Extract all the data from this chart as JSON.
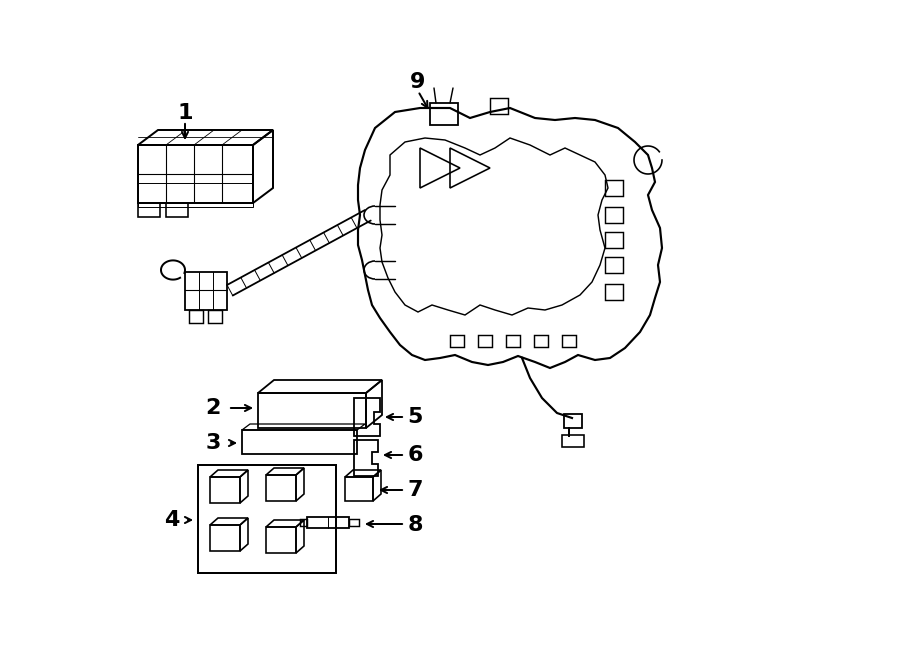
{
  "background_color": "#ffffff",
  "line_color": "#000000",
  "lw": 1.3,
  "label_fontsize": 16,
  "figsize": [
    9.0,
    6.61
  ],
  "dpi": 100
}
